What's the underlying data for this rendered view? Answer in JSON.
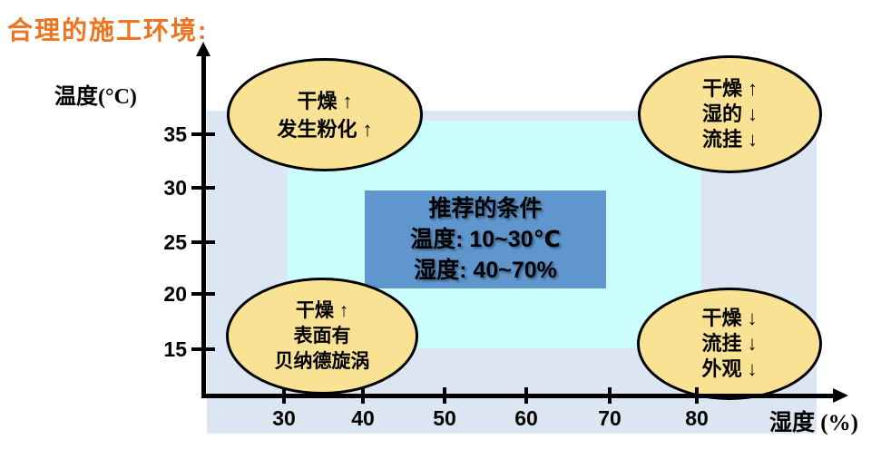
{
  "title": "合理的施工环境:",
  "colors": {
    "title-orange": "#ED7421",
    "outer-region": "#DCE6F2",
    "inner-region": "#CBFDFD",
    "ellipse-fill": "#FAE295",
    "ellipse-border": "#000000",
    "box-blue": "#5E96CD",
    "axis-black": "#000000"
  },
  "chart_data": {
    "type": "area",
    "title": "合理的施工环境:",
    "xlabel": "湿度 (%)",
    "ylabel": "温度(°C)",
    "x_ticks": [
      "30",
      "40",
      "50",
      "60",
      "70",
      "80"
    ],
    "y_ticks": [
      "35",
      "30",
      "25",
      "20",
      "15"
    ],
    "legend_position": "none",
    "grid": false,
    "recommended_box": {
      "line1": "推荐的条件",
      "line2": "温度: 10~30℃",
      "line3": "湿度: 40~70%"
    },
    "annotations": {
      "top_left": {
        "lines": [
          "干燥 ↑",
          "发生粉化 ↑"
        ]
      },
      "top_right": {
        "lines": [
          "干燥 ↑",
          "湿的 ↓",
          "流挂 ↓"
        ]
      },
      "bottom_left": {
        "lines": [
          "干燥 ↑",
          "表面有",
          "贝纳德旋涡"
        ]
      },
      "bottom_right": {
        "lines": [
          "干燥 ↓",
          "流挂 ↓",
          "外观 ↓"
        ]
      }
    }
  }
}
